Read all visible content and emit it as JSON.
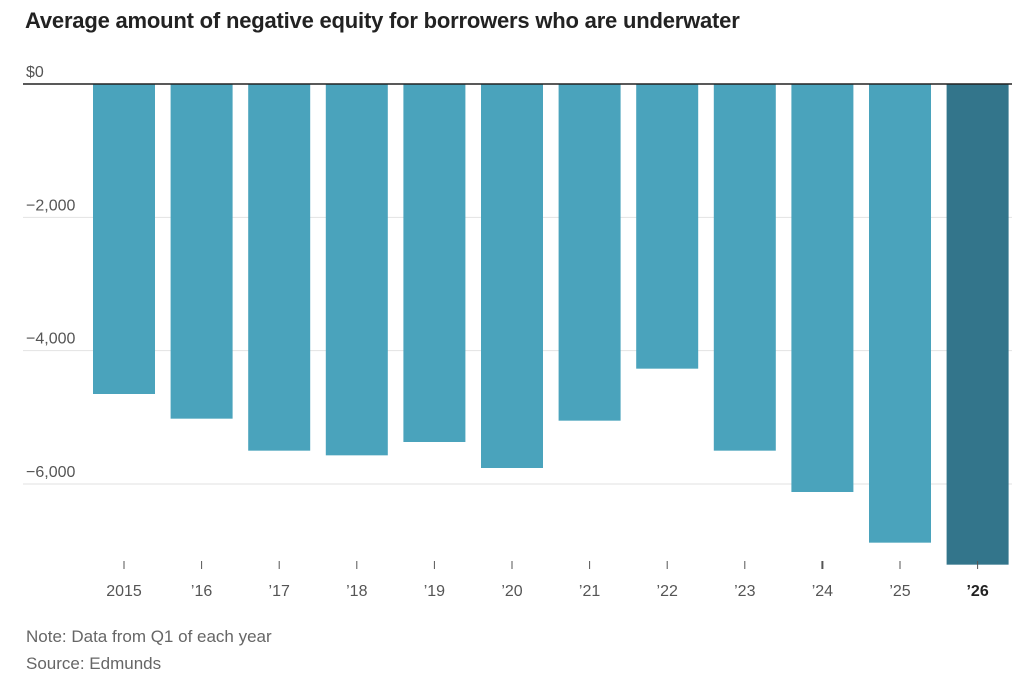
{
  "title": "Average amount of negative equity for borrowers who are underwater",
  "note": "Note: Data from Q1 of each year",
  "source": "Source: Edmunds",
  "colors": {
    "bar": "#4aa3bc",
    "highlight": "#33758b",
    "grid": "#e2e2e2",
    "axis": "#222222"
  },
  "chart_data": {
    "type": "bar",
    "title": "Average amount of negative equity for borrowers who are underwater",
    "xlabel": "",
    "ylabel": "",
    "categories": [
      "2015",
      "’16",
      "’17",
      "’18",
      "’19",
      "’20",
      "’21",
      "’22",
      "’23",
      "’24",
      "’25",
      "’26"
    ],
    "values": [
      -4650,
      -5020,
      -5500,
      -5570,
      -5370,
      -5760,
      -5050,
      -4270,
      -5500,
      -6120,
      -6880,
      -7210
    ],
    "highlight_index": 11,
    "ylim": [
      -7200,
      0
    ],
    "y_ticks": [
      0,
      -2000,
      -4000,
      -6000
    ],
    "y_tick_labels": [
      "$0",
      "−2,000",
      "−4,000",
      "−6,000"
    ],
    "grid": true,
    "legend": "none"
  }
}
